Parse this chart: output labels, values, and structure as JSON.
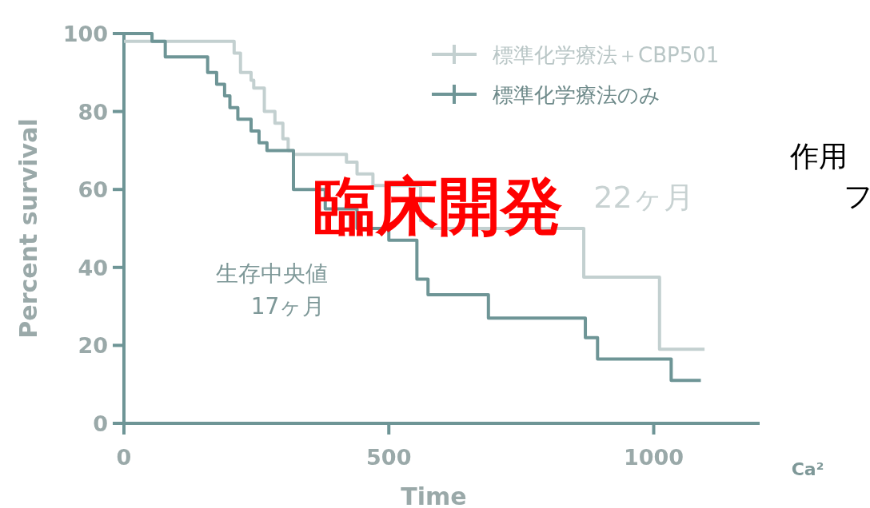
{
  "chart_data": {
    "type": "step",
    "title": "臨床開発",
    "xlabel": "Time",
    "ylabel": "Percent survival",
    "xlim": [
      0,
      1200
    ],
    "ylim": [
      0,
      100
    ],
    "xticks": [
      0,
      500,
      1000
    ],
    "yticks": [
      0,
      20,
      40,
      60,
      80,
      100
    ],
    "legend": "top right",
    "marker": "none",
    "line_style": "solid",
    "grid": false,
    "annotations": [
      "生存中央値\n17ヶ月",
      "22ヶ月",
      "作用",
      "フ",
      "Ca²"
    ],
    "series": [
      {
        "name": "標準化学療法＋CBP501",
        "color": "#c3d0d0",
        "x": [
          0,
          208,
          220,
          240,
          245,
          265,
          285,
          300,
          310,
          320,
          420,
          440,
          470,
          560,
          580,
          868,
          1011,
          1096
        ],
        "values": [
          98,
          95,
          90,
          88,
          86,
          80,
          77,
          73,
          70,
          69,
          67,
          64,
          61,
          52,
          50,
          37.5,
          19,
          19
        ]
      },
      {
        "name": "標準化学療法のみ",
        "color": "#6e9596",
        "x": [
          0,
          53,
          78,
          158,
          175,
          190,
          200,
          215,
          240,
          255,
          270,
          320,
          380,
          440,
          500,
          553,
          574,
          688,
          871,
          894,
          1033,
          1089
        ],
        "values": [
          100,
          98,
          94,
          90,
          87,
          84,
          81,
          78,
          75,
          72,
          70,
          60,
          55,
          50,
          47,
          37,
          33,
          27,
          22,
          16.5,
          11,
          11
        ]
      }
    ]
  }
}
